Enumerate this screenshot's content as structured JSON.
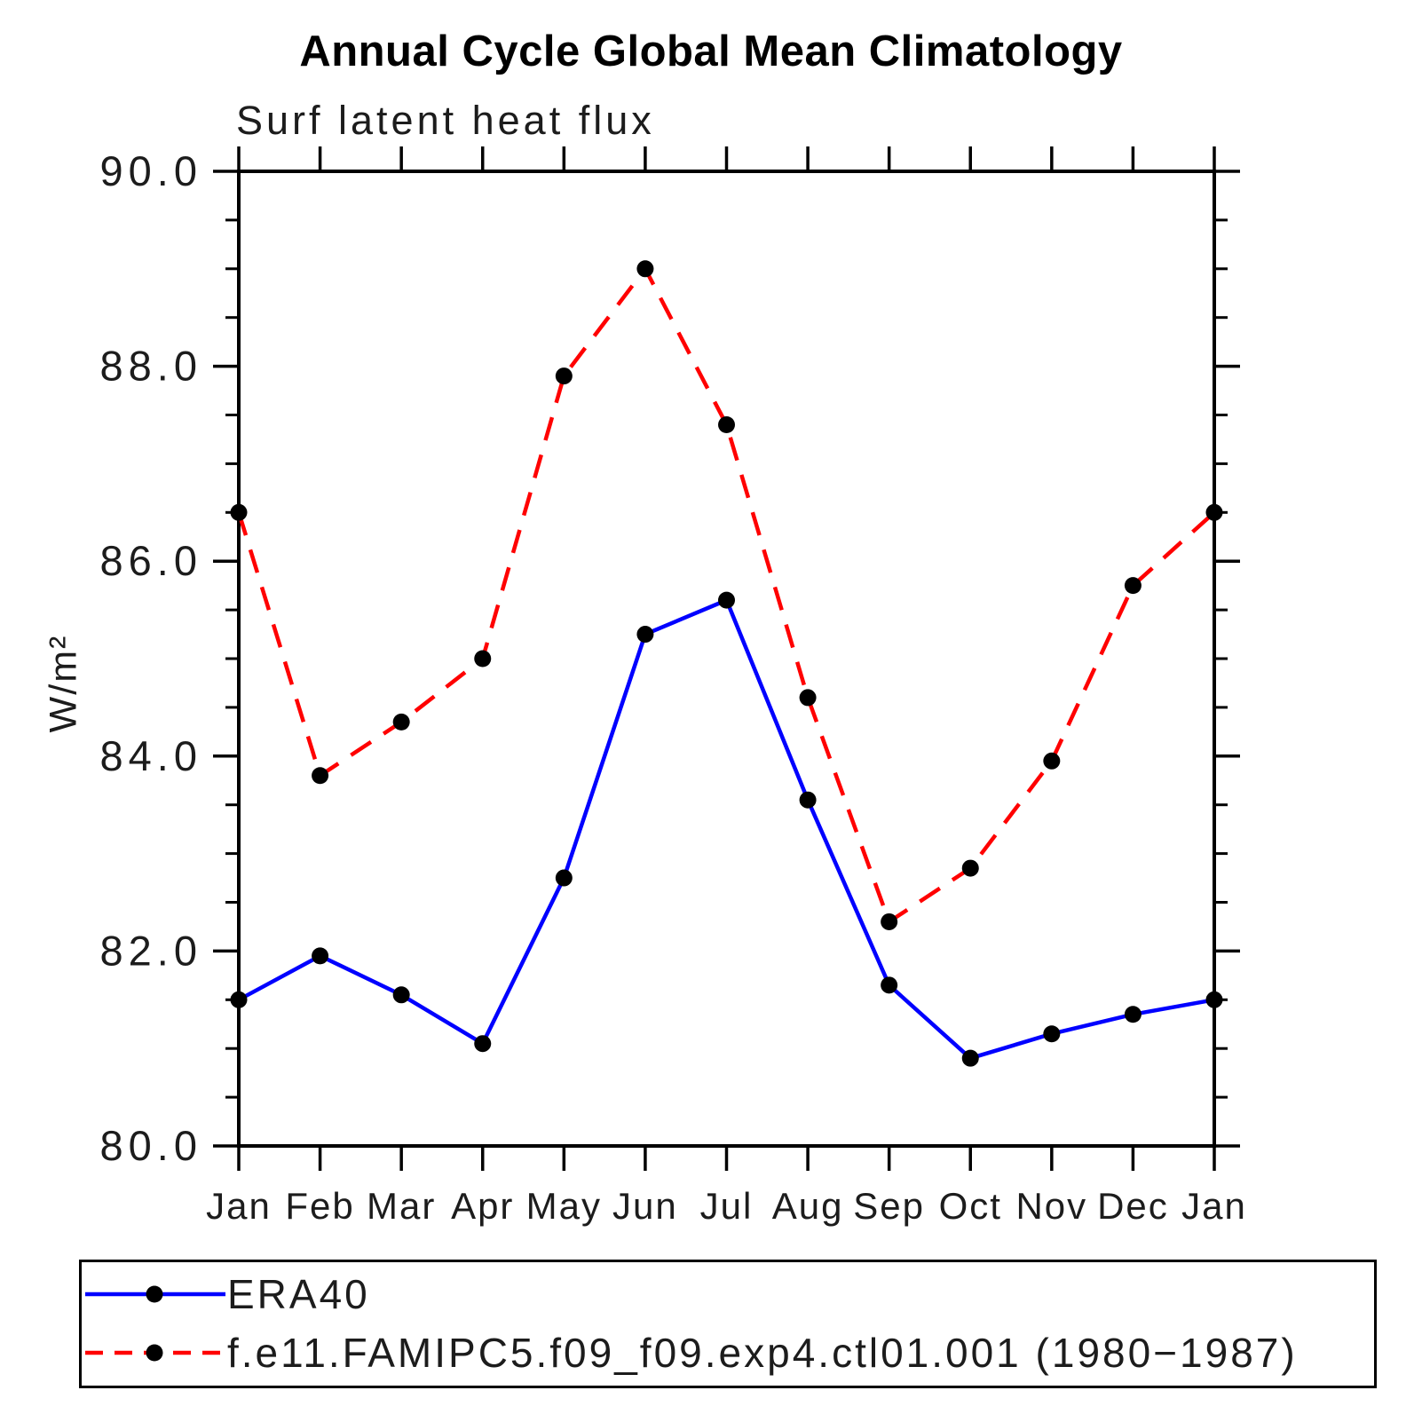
{
  "chart_data": {
    "type": "line",
    "title": "Annual Cycle Global Mean Climatology",
    "subtitle": "Surf latent heat flux",
    "ylabel": "W/m²",
    "categories": [
      "Jan",
      "Feb",
      "Mar",
      "Apr",
      "May",
      "Jun",
      "Jul",
      "Aug",
      "Sep",
      "Oct",
      "Nov",
      "Dec",
      "Jan"
    ],
    "series": [
      {
        "name": "ERA40",
        "color": "#0000ff",
        "line_style": "solid",
        "marker": "filled-black-circle",
        "values": [
          81.5,
          81.95,
          81.55,
          81.05,
          82.75,
          85.25,
          85.6,
          83.55,
          81.65,
          80.9,
          81.15,
          81.35,
          81.5
        ]
      },
      {
        "name": "f.e11.FAMIPC5.f09_f09.exp4.ctl01.001 (1980−1987)",
        "color": "#ff0000",
        "line_style": "dashed",
        "marker": "filled-black-circle",
        "values": [
          86.5,
          83.8,
          84.35,
          85.0,
          87.9,
          89.0,
          87.4,
          84.6,
          82.3,
          82.85,
          83.95,
          85.75,
          86.5
        ]
      }
    ],
    "ylim": [
      80.0,
      90.0
    ],
    "ytick_major": [
      80,
      82,
      84,
      86,
      88,
      90
    ],
    "ytick_labels": [
      "80.0",
      "82.0",
      "84.0",
      "86.0",
      "88.0",
      "90.0"
    ],
    "ytick_minor_step": 0.5,
    "xtick_count": 13,
    "grid": false,
    "legend_position": "bottom-left-box",
    "marker_color": "#000000",
    "axis_color": "#000000"
  }
}
